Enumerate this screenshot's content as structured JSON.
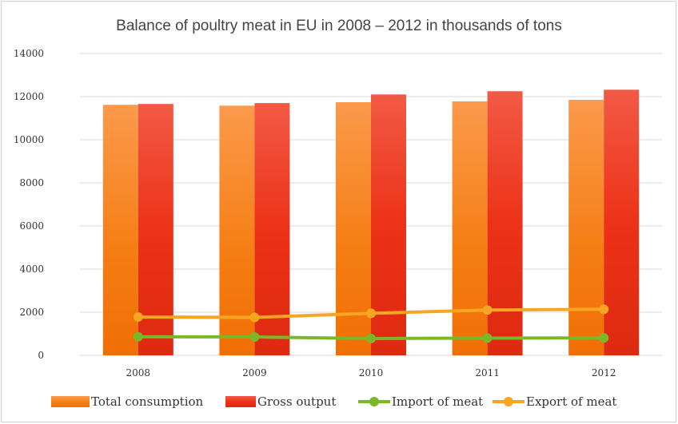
{
  "chart_data": {
    "type": "bar",
    "title": "Balance of poultry meat in EU in 2008 – 2012 in thousands of tons",
    "xlabel": "",
    "ylabel": "",
    "categories": [
      "2008",
      "2009",
      "2010",
      "2011",
      "2012"
    ],
    "ylim": [
      0,
      14000
    ],
    "yticks": [
      "0",
      "2000",
      "4000",
      "6000",
      "8000",
      "10000",
      "12000",
      "14000"
    ],
    "grid": true,
    "legend_position": "bottom",
    "bar_series": [
      {
        "name": "Total consumption",
        "values": [
          11620,
          11580,
          11740,
          11780,
          11850
        ],
        "color": "#f98b2e"
      },
      {
        "name": "Gross output",
        "values": [
          11660,
          11700,
          12100,
          12250,
          12320
        ],
        "color": "#ee3a1c"
      }
    ],
    "line_series": [
      {
        "name": "Import of meat",
        "values": [
          860,
          850,
          780,
          800,
          810
        ],
        "color": "#7ab82a"
      },
      {
        "name": "Export of meat",
        "values": [
          1780,
          1760,
          1950,
          2100,
          2140
        ],
        "color": "#f6a623"
      }
    ]
  }
}
